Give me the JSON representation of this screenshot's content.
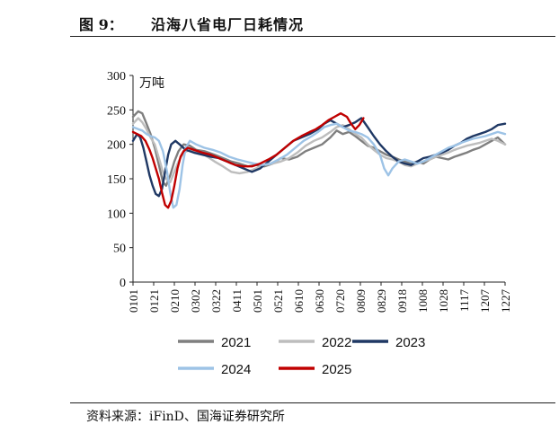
{
  "header": {
    "figure_label": "图 9：",
    "title": "沿海八省电厂日耗情况"
  },
  "footer": {
    "source": "资料来源：iFinD、国海证券研究所"
  },
  "chart_data": {
    "type": "line",
    "unit": "万吨",
    "ylim": [
      0,
      300
    ],
    "yticks": [
      "0",
      "50",
      "100",
      "150",
      "200",
      "250",
      "300"
    ],
    "xticks": [
      "0101",
      "0121",
      "0210",
      "0302",
      "0322",
      "0411",
      "0501",
      "0521",
      "0610",
      "0630",
      "0720",
      "0809",
      "0829",
      "0918",
      "1008",
      "1028",
      "1117",
      "1207",
      "1227"
    ],
    "x_range_days": [
      1,
      361
    ],
    "grid": false,
    "legend_position": "bottom",
    "series": [
      {
        "name": "2021",
        "color": "#7f7f7f",
        "points": [
          [
            1,
            240
          ],
          [
            6,
            248
          ],
          [
            10,
            245
          ],
          [
            14,
            230
          ],
          [
            18,
            215
          ],
          [
            22,
            195
          ],
          [
            26,
            170
          ],
          [
            30,
            145
          ],
          [
            33,
            140
          ],
          [
            37,
            155
          ],
          [
            41,
            175
          ],
          [
            45,
            190
          ],
          [
            50,
            200
          ],
          [
            56,
            198
          ],
          [
            62,
            192
          ],
          [
            70,
            190
          ],
          [
            80,
            185
          ],
          [
            88,
            180
          ],
          [
            96,
            175
          ],
          [
            104,
            172
          ],
          [
            112,
            168
          ],
          [
            120,
            170
          ],
          [
            128,
            168
          ],
          [
            136,
            172
          ],
          [
            144,
            180
          ],
          [
            152,
            178
          ],
          [
            160,
            182
          ],
          [
            168,
            190
          ],
          [
            176,
            195
          ],
          [
            184,
            200
          ],
          [
            192,
            210
          ],
          [
            198,
            220
          ],
          [
            204,
            215
          ],
          [
            210,
            218
          ],
          [
            216,
            212
          ],
          [
            222,
            205
          ],
          [
            228,
            198
          ],
          [
            234,
            195
          ],
          [
            240,
            190
          ],
          [
            246,
            185
          ],
          [
            252,
            182
          ],
          [
            258,
            178
          ],
          [
            264,
            175
          ],
          [
            270,
            172
          ],
          [
            276,
            175
          ],
          [
            282,
            172
          ],
          [
            288,
            178
          ],
          [
            294,
            182
          ],
          [
            300,
            180
          ],
          [
            306,
            178
          ],
          [
            312,
            182
          ],
          [
            318,
            185
          ],
          [
            324,
            188
          ],
          [
            330,
            192
          ],
          [
            336,
            195
          ],
          [
            342,
            200
          ],
          [
            348,
            205
          ],
          [
            354,
            210
          ],
          [
            361,
            200
          ]
        ]
      },
      {
        "name": "2022",
        "color": "#bdbdbd",
        "points": [
          [
            1,
            230
          ],
          [
            6,
            238
          ],
          [
            10,
            232
          ],
          [
            14,
            222
          ],
          [
            18,
            210
          ],
          [
            22,
            200
          ],
          [
            26,
            180
          ],
          [
            30,
            160
          ],
          [
            33,
            150
          ],
          [
            37,
            145
          ],
          [
            41,
            160
          ],
          [
            45,
            175
          ],
          [
            50,
            188
          ],
          [
            56,
            192
          ],
          [
            62,
            190
          ],
          [
            70,
            185
          ],
          [
            80,
            175
          ],
          [
            88,
            168
          ],
          [
            96,
            160
          ],
          [
            104,
            158
          ],
          [
            112,
            160
          ],
          [
            120,
            165
          ],
          [
            128,
            170
          ],
          [
            136,
            172
          ],
          [
            144,
            175
          ],
          [
            152,
            180
          ],
          [
            160,
            188
          ],
          [
            168,
            198
          ],
          [
            176,
            205
          ],
          [
            184,
            210
          ],
          [
            192,
            218
          ],
          [
            198,
            225
          ],
          [
            204,
            228
          ],
          [
            210,
            222
          ],
          [
            216,
            215
          ],
          [
            222,
            210
          ],
          [
            228,
            200
          ],
          [
            234,
            192
          ],
          [
            240,
            185
          ],
          [
            246,
            180
          ],
          [
            252,
            178
          ],
          [
            258,
            175
          ],
          [
            264,
            170
          ],
          [
            270,
            168
          ],
          [
            276,
            172
          ],
          [
            282,
            175
          ],
          [
            288,
            178
          ],
          [
            294,
            182
          ],
          [
            300,
            185
          ],
          [
            306,
            188
          ],
          [
            312,
            192
          ],
          [
            318,
            195
          ],
          [
            324,
            198
          ],
          [
            330,
            200
          ],
          [
            336,
            202
          ],
          [
            342,
            205
          ],
          [
            348,
            208
          ],
          [
            354,
            205
          ],
          [
            361,
            200
          ]
        ]
      },
      {
        "name": "2023",
        "color": "#1f3864",
        "points": [
          [
            1,
            205
          ],
          [
            5,
            215
          ],
          [
            8,
            210
          ],
          [
            11,
            195
          ],
          [
            14,
            175
          ],
          [
            17,
            155
          ],
          [
            20,
            140
          ],
          [
            23,
            128
          ],
          [
            26,
            125
          ],
          [
            29,
            135
          ],
          [
            32,
            160
          ],
          [
            35,
            185
          ],
          [
            38,
            200
          ],
          [
            42,
            205
          ],
          [
            46,
            200
          ],
          [
            52,
            192
          ],
          [
            60,
            188
          ],
          [
            68,
            185
          ],
          [
            76,
            182
          ],
          [
            84,
            180
          ],
          [
            92,
            175
          ],
          [
            100,
            170
          ],
          [
            108,
            165
          ],
          [
            116,
            160
          ],
          [
            124,
            165
          ],
          [
            132,
            175
          ],
          [
            140,
            185
          ],
          [
            148,
            195
          ],
          [
            156,
            205
          ],
          [
            164,
            210
          ],
          [
            172,
            215
          ],
          [
            180,
            222
          ],
          [
            186,
            230
          ],
          [
            192,
            235
          ],
          [
            198,
            230
          ],
          [
            204,
            225
          ],
          [
            210,
            228
          ],
          [
            216,
            232
          ],
          [
            222,
            238
          ],
          [
            228,
            225
          ],
          [
            234,
            212
          ],
          [
            240,
            200
          ],
          [
            246,
            190
          ],
          [
            252,
            182
          ],
          [
            258,
            175
          ],
          [
            264,
            172
          ],
          [
            270,
            170
          ],
          [
            276,
            175
          ],
          [
            282,
            180
          ],
          [
            288,
            182
          ],
          [
            294,
            185
          ],
          [
            300,
            188
          ],
          [
            306,
            192
          ],
          [
            312,
            198
          ],
          [
            318,
            202
          ],
          [
            324,
            208
          ],
          [
            330,
            212
          ],
          [
            336,
            215
          ],
          [
            342,
            218
          ],
          [
            348,
            222
          ],
          [
            354,
            228
          ],
          [
            361,
            230
          ]
        ]
      },
      {
        "name": "2024",
        "color": "#9dc3e6",
        "points": [
          [
            1,
            225
          ],
          [
            6,
            222
          ],
          [
            10,
            220
          ],
          [
            14,
            215
          ],
          [
            18,
            212
          ],
          [
            22,
            210
          ],
          [
            26,
            205
          ],
          [
            30,
            190
          ],
          [
            34,
            160
          ],
          [
            37,
            130
          ],
          [
            40,
            108
          ],
          [
            43,
            112
          ],
          [
            46,
            135
          ],
          [
            49,
            170
          ],
          [
            52,
            195
          ],
          [
            56,
            205
          ],
          [
            62,
            200
          ],
          [
            70,
            195
          ],
          [
            78,
            192
          ],
          [
            86,
            188
          ],
          [
            94,
            182
          ],
          [
            102,
            178
          ],
          [
            110,
            175
          ],
          [
            118,
            172
          ],
          [
            126,
            170
          ],
          [
            134,
            172
          ],
          [
            142,
            178
          ],
          [
            150,
            185
          ],
          [
            158,
            195
          ],
          [
            166,
            205
          ],
          [
            174,
            212
          ],
          [
            180,
            218
          ],
          [
            186,
            225
          ],
          [
            192,
            228
          ],
          [
            198,
            230
          ],
          [
            204,
            225
          ],
          [
            210,
            220
          ],
          [
            216,
            218
          ],
          [
            222,
            215
          ],
          [
            228,
            210
          ],
          [
            234,
            200
          ],
          [
            240,
            185
          ],
          [
            244,
            165
          ],
          [
            248,
            155
          ],
          [
            252,
            165
          ],
          [
            258,
            175
          ],
          [
            264,
            178
          ],
          [
            270,
            175
          ],
          [
            276,
            172
          ],
          [
            282,
            175
          ],
          [
            288,
            180
          ],
          [
            294,
            185
          ],
          [
            300,
            190
          ],
          [
            306,
            195
          ],
          [
            312,
            198
          ],
          [
            318,
            202
          ],
          [
            324,
            205
          ],
          [
            330,
            208
          ],
          [
            336,
            210
          ],
          [
            342,
            212
          ],
          [
            348,
            215
          ],
          [
            354,
            218
          ],
          [
            361,
            215
          ]
        ]
      },
      {
        "name": "2025",
        "color": "#c00000",
        "points": [
          [
            1,
            218
          ],
          [
            5,
            215
          ],
          [
            9,
            212
          ],
          [
            13,
            205
          ],
          [
            17,
            192
          ],
          [
            20,
            180
          ],
          [
            23,
            165
          ],
          [
            26,
            150
          ],
          [
            29,
            130
          ],
          [
            32,
            112
          ],
          [
            35,
            108
          ],
          [
            38,
            118
          ],
          [
            41,
            140
          ],
          [
            44,
            165
          ],
          [
            47,
            182
          ],
          [
            50,
            190
          ],
          [
            54,
            195
          ],
          [
            60,
            192
          ],
          [
            68,
            188
          ],
          [
            76,
            185
          ],
          [
            84,
            180
          ],
          [
            92,
            175
          ],
          [
            100,
            170
          ],
          [
            108,
            168
          ],
          [
            116,
            168
          ],
          [
            124,
            172
          ],
          [
            132,
            178
          ],
          [
            140,
            185
          ],
          [
            148,
            195
          ],
          [
            156,
            205
          ],
          [
            164,
            212
          ],
          [
            172,
            218
          ],
          [
            178,
            222
          ],
          [
            184,
            228
          ],
          [
            190,
            235
          ],
          [
            196,
            240
          ],
          [
            202,
            245
          ],
          [
            208,
            240
          ],
          [
            212,
            230
          ],
          [
            216,
            222
          ],
          [
            220,
            228
          ],
          [
            224,
            238
          ]
        ]
      }
    ]
  }
}
